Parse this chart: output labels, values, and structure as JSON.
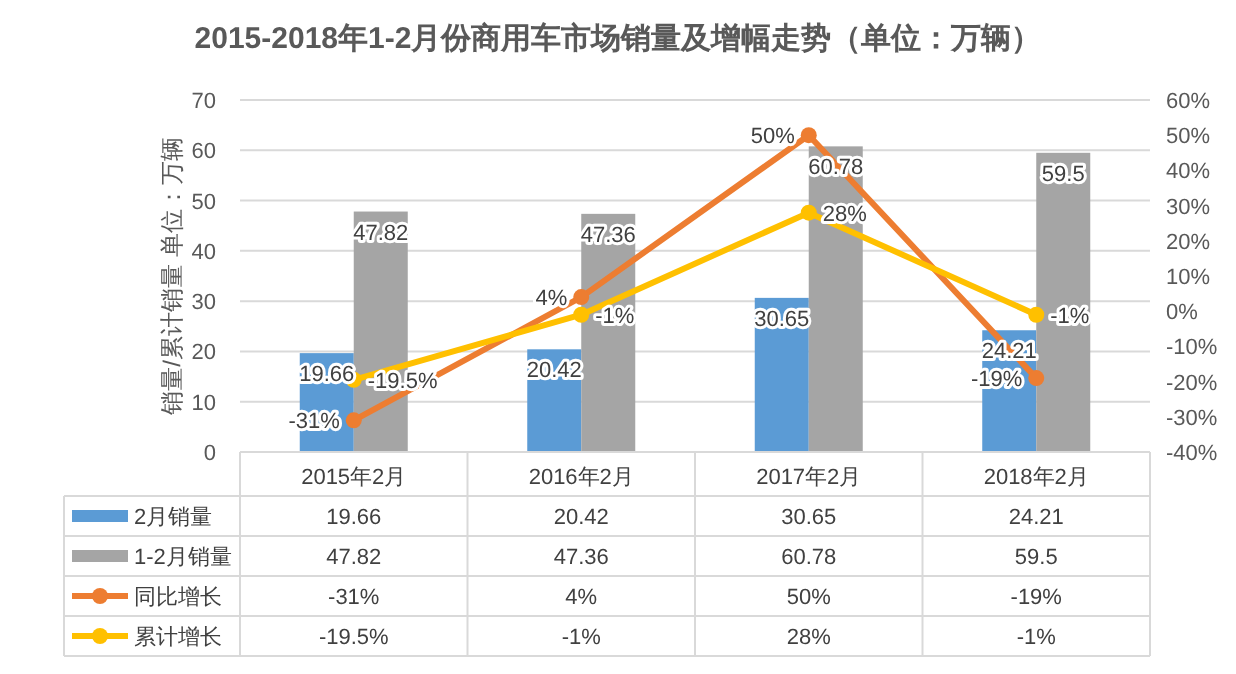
{
  "chart_data": {
    "type": "bar",
    "title": "2015-2018年1-2月份商用车市场销量及增幅走势（单位：万辆）",
    "ylabel": "销量/累计销量 单位：万辆",
    "categories": [
      "2015年2月",
      "2016年2月",
      "2017年2月",
      "2018年2月"
    ],
    "series": [
      {
        "name": "2月销量",
        "color": "#5b9bd5",
        "values": [
          19.66,
          20.42,
          30.65,
          24.21
        ],
        "value_labels": [
          "19.66",
          "20.42",
          "30.65",
          "24.21"
        ]
      },
      {
        "name": "1-2月销量",
        "color": "#a5a5a5",
        "values": [
          47.82,
          47.36,
          60.78,
          59.5
        ],
        "value_labels": [
          "47.82",
          "47.36",
          "60.78",
          "59.5"
        ]
      },
      {
        "name": "同比增长",
        "type": "line",
        "axis": "y2",
        "color": "#ed7d31",
        "values": [
          -31,
          4,
          50,
          -19
        ],
        "value_labels": [
          "-31%",
          "4%",
          "50%",
          "-19%"
        ]
      },
      {
        "name": "累计增长",
        "type": "line",
        "axis": "y2",
        "color": "#ffc000",
        "values": [
          -19.5,
          -1,
          28,
          -1
        ],
        "value_labels": [
          "-19.5%",
          "-1%",
          "28%",
          "-1%"
        ]
      }
    ],
    "ylim": [
      0,
      70
    ],
    "yticks": [
      0,
      10,
      20,
      30,
      40,
      50,
      60,
      70
    ],
    "y2lim": [
      -40,
      60
    ],
    "y2ticks": [
      {
        "value": -40,
        "label": "-40%"
      },
      {
        "value": -30,
        "label": "-30%"
      },
      {
        "value": -20,
        "label": "-20%"
      },
      {
        "value": -10,
        "label": "-10%"
      },
      {
        "value": 0,
        "label": "0%"
      },
      {
        "value": 10,
        "label": "10%"
      },
      {
        "value": 20,
        "label": "20%"
      },
      {
        "value": 30,
        "label": "30%"
      },
      {
        "value": 40,
        "label": "40%"
      },
      {
        "value": 50,
        "label": "50%"
      },
      {
        "value": 60,
        "label": "60%"
      }
    ],
    "grid": "y",
    "marker": "circle",
    "legend": "bottom"
  }
}
